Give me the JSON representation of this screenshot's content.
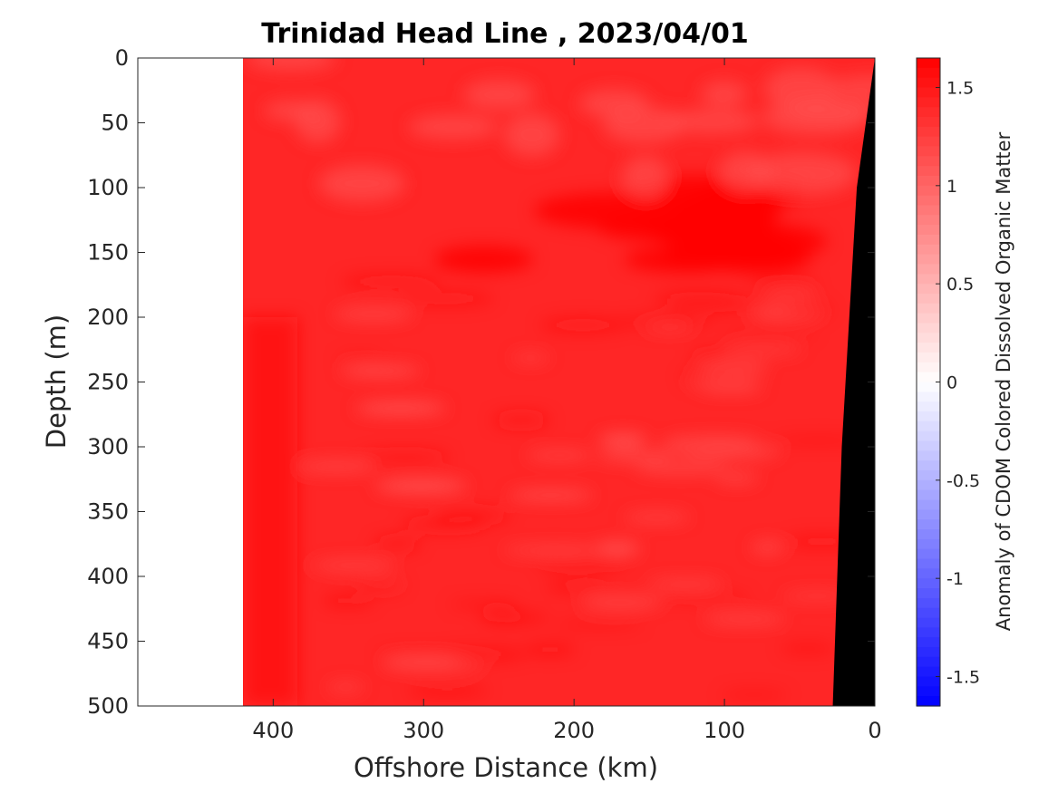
{
  "chart_data": {
    "type": "heatmap",
    "title": "Trinidad Head Line , 2023/04/01",
    "xlabel": "Offshore Distance (km)",
    "ylabel": "Depth (m)",
    "colorbar_label": "Anomaly of CDOM Colored Dissolved Organic Matter",
    "xlim": [
      490,
      0
    ],
    "x_reversed": true,
    "ylim": [
      0,
      500
    ],
    "y_reversed": true,
    "x_ticks": [
      400,
      300,
      200,
      100,
      0
    ],
    "x_tick_labels": [
      "400",
      "300",
      "200",
      "100",
      "0"
    ],
    "y_ticks": [
      0,
      50,
      100,
      150,
      200,
      250,
      300,
      350,
      400,
      450,
      500
    ],
    "y_tick_labels": [
      "0",
      "50",
      "100",
      "150",
      "200",
      "250",
      "300",
      "350",
      "400",
      "450",
      "500"
    ],
    "colorbar_range": [
      -1.65,
      1.65
    ],
    "colorbar_ticks": [
      1.5,
      1,
      0.5,
      0,
      -0.5,
      -1,
      -1.5
    ],
    "colorbar_tick_labels": [
      "1.5",
      "1",
      "0.5",
      "0",
      "-0.5",
      "-1",
      "-1.5"
    ],
    "colormap": {
      "negative": "#0000ff",
      "zero": "#ffffff",
      "positive": "#ff0000"
    },
    "data_extent_km": [
      420,
      0
    ],
    "bathymetry_color": "#000000",
    "bathymetry_profile": [
      {
        "depth": 0,
        "distance_km": 0
      },
      {
        "depth": 50,
        "distance_km": 6
      },
      {
        "depth": 100,
        "distance_km": 12
      },
      {
        "depth": 200,
        "distance_km": 17
      },
      {
        "depth": 300,
        "distance_km": 22
      },
      {
        "depth": 400,
        "distance_km": 25
      },
      {
        "depth": 500,
        "distance_km": 28
      }
    ],
    "field_summary": "Positive anomaly everywhere (about 1.1 to 1.65); strongest in 100-150 m band between 60-250 km; weaker paler streaks around 250-350 m"
  }
}
